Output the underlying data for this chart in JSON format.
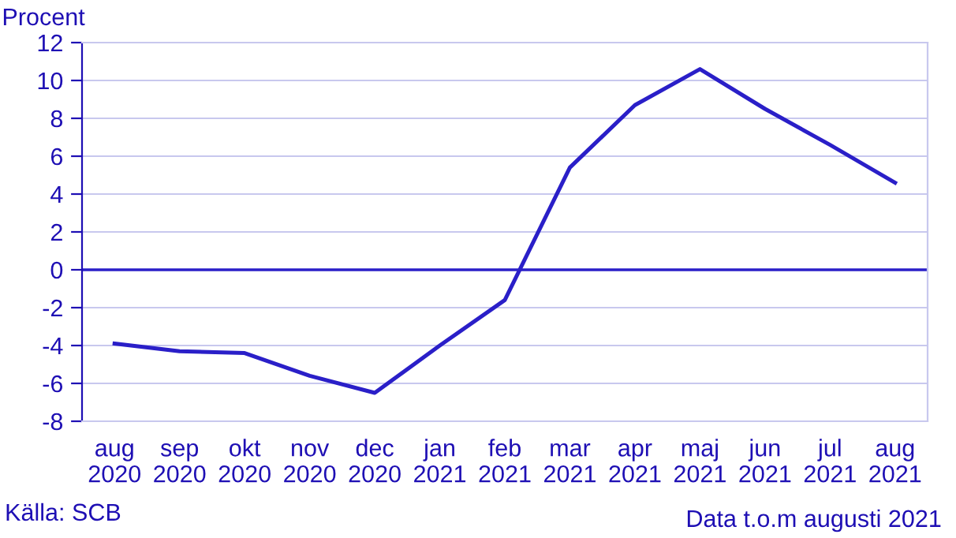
{
  "chart_data": {
    "type": "line",
    "ylabel": "Procent",
    "categories": [
      "aug\n2020",
      "sep\n2020",
      "okt\n2020",
      "nov\n2020",
      "dec\n2020",
      "jan\n2021",
      "feb\n2021",
      "mar\n2021",
      "apr\n2021",
      "maj\n2021",
      "jun\n2021",
      "jul\n2021",
      "aug\n2021"
    ],
    "series": [
      {
        "color": "#2a1fc8",
        "values": [
          -3.9,
          -4.3,
          -4.4,
          -5.6,
          -6.5,
          -4.0,
          -1.6,
          5.4,
          8.7,
          10.6,
          8.5,
          6.6,
          4.6
        ]
      }
    ],
    "ylim": [
      -8,
      12
    ],
    "yticks": [
      -8,
      -6,
      -4,
      -2,
      0,
      2,
      4,
      6,
      8,
      10,
      12
    ],
    "grid": "y",
    "legend": false,
    "marker": "none",
    "line_style": "solid",
    "ref_lines": [
      {
        "axis": "y",
        "value": 0,
        "color": "#2a1fc8"
      }
    ],
    "annotations": [
      "Källa: SCB",
      "Data t.o.m augusti 2021"
    ]
  }
}
